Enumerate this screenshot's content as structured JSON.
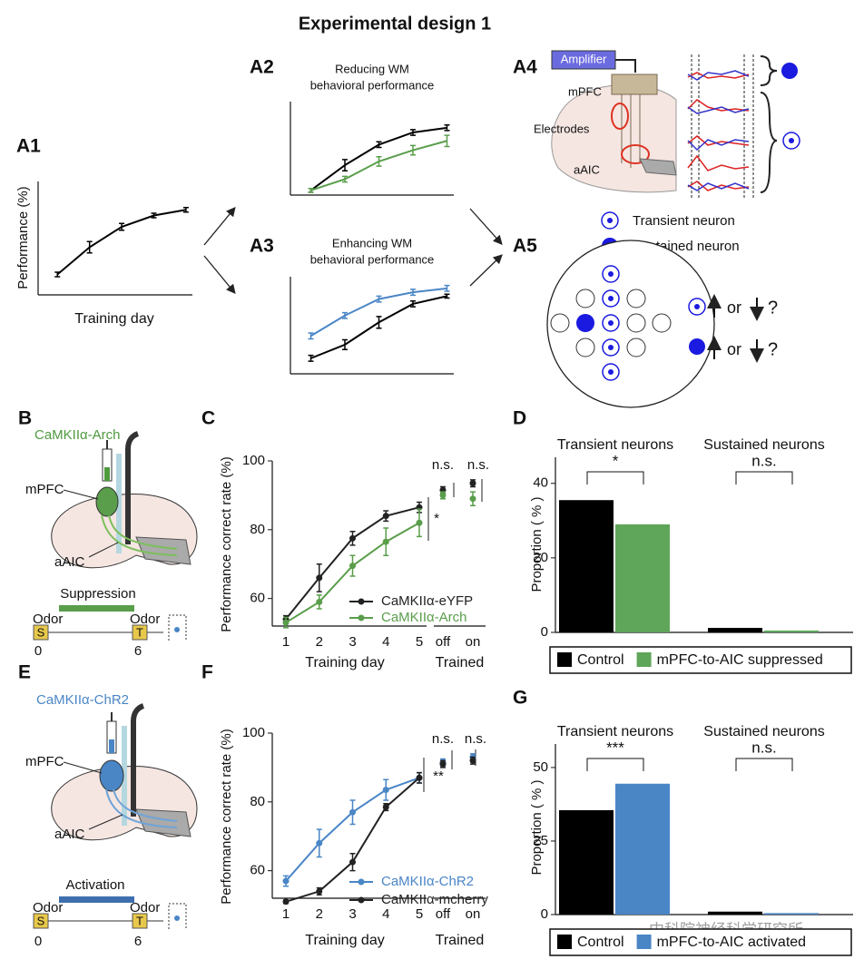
{
  "title": "Experimental design 1",
  "panel_labels": [
    "A1",
    "A2",
    "A3",
    "A4",
    "A5",
    "B",
    "C",
    "D",
    "E",
    "F",
    "G"
  ],
  "a4": {
    "amplifier": "Amplifier",
    "mpfc": "mPFC",
    "electrodes": "Electrodes",
    "aaic": "aAIC"
  },
  "a5": {
    "transient": "Transient neuron",
    "sustained": "Sustained neuron",
    "or": "or",
    "question": "?"
  },
  "b": {
    "construct": "CaMKIIα-Arch",
    "mpfc": "mPFC",
    "aaic": "aAIC",
    "manipulation": "Suppression",
    "odor": "Odor",
    "sample": "S",
    "test": "T",
    "t0": "0",
    "t1": "6"
  },
  "e": {
    "construct": "CaMKIIα-ChR2",
    "mpfc": "mPFC",
    "aaic": "aAIC",
    "manipulation": "Activation",
    "odor": "Odor",
    "sample": "S",
    "test": "T",
    "t0": "0",
    "t1": "6"
  },
  "watermark": "中科院神经科学研究所",
  "chart_data": [
    {
      "type": "line",
      "ylabel": "Performance (%)",
      "xlabel": "Training day",
      "x": [
        1,
        2,
        3,
        4,
        5
      ],
      "xlim": [
        0.4,
        5.2
      ],
      "ylim": [
        0,
        100
      ],
      "series": [
        {
          "color": "#000000",
          "values": [
            18,
            42,
            60,
            70,
            75
          ],
          "errors": [
            2,
            5,
            3,
            2,
            2
          ]
        }
      ]
    },
    {
      "type": "line",
      "title": [
        "Reducing WM",
        "behavioral performance"
      ],
      "x": [
        1,
        2,
        3,
        4,
        5
      ],
      "xlim": [
        0.4,
        5.2
      ],
      "ylim": [
        0,
        100
      ],
      "series": [
        {
          "color": "#000000",
          "values": [
            5,
            32,
            54,
            67,
            72
          ],
          "errors": [
            2,
            6,
            3,
            3,
            3
          ]
        },
        {
          "color": "#5a9e4b",
          "values": [
            5,
            17,
            36,
            48,
            58
          ],
          "errors": [
            2,
            3,
            5,
            5,
            6
          ]
        }
      ]
    },
    {
      "type": "line",
      "title": [
        "Enhancing WM",
        "behavioral performance"
      ],
      "x": [
        1,
        2,
        3,
        4,
        5
      ],
      "xlim": [
        0.4,
        5.2
      ],
      "ylim": [
        0,
        100
      ],
      "series": [
        {
          "color": "#4a86c6",
          "values": [
            39,
            60,
            77,
            84,
            88
          ],
          "errors": [
            3,
            3,
            3,
            3,
            3
          ]
        },
        {
          "color": "#000000",
          "values": [
            16,
            30,
            53,
            72,
            80
          ],
          "errors": [
            3,
            5,
            6,
            3,
            2
          ]
        }
      ]
    },
    {
      "type": "line",
      "ylabel": "Performance correct rate (%)",
      "xlabel": "Training day",
      "categories": [
        "1",
        "2",
        "3",
        "4",
        "5"
      ],
      "ylim": [
        52,
        100
      ],
      "yticks": [
        60,
        80,
        100
      ],
      "trained": {
        "label": "Trained",
        "categories": [
          "off",
          "on"
        ]
      },
      "series": [
        {
          "name": "CaMKIIα-eYFP",
          "color": "#222222",
          "values": [
            54,
            66,
            77.5,
            84,
            86.5
          ],
          "errors": [
            1,
            4,
            2,
            1.5,
            1.5
          ],
          "trained_values": [
            91.5,
            93.5
          ],
          "trained_errors": [
            1,
            1
          ]
        },
        {
          "name": "CaMKIIα-Arch",
          "color": "#5a9e4b",
          "values": [
            53,
            59,
            69.5,
            76.5,
            82
          ],
          "errors": [
            1.5,
            2,
            3,
            4,
            4
          ],
          "trained_values": [
            90,
            89
          ],
          "trained_errors": [
            1,
            2
          ]
        }
      ],
      "annotations": [
        "*",
        "n.s.",
        "n.s."
      ]
    },
    {
      "type": "bar",
      "ylabel": "Proportion ( % )",
      "categories": [
        "Transient neurons",
        "Sustained neurons"
      ],
      "ylim": [
        0,
        47
      ],
      "yticks": [
        0,
        20,
        40
      ],
      "series": [
        {
          "name": "Control",
          "color": "#000000",
          "values": [
            35.5,
            1.2
          ]
        },
        {
          "name": "mPFC-to-AIC suppressed",
          "color": "#5fa55a",
          "values": [
            29,
            0.5
          ]
        }
      ],
      "annotations": [
        "*",
        "n.s."
      ]
    },
    {
      "type": "line",
      "ylabel": "Performance correct rate (%)",
      "xlabel": "Training day",
      "categories": [
        "1",
        "2",
        "3",
        "4",
        "5"
      ],
      "ylim": [
        52,
        100
      ],
      "yticks": [
        60,
        80,
        100
      ],
      "trained": {
        "label": "Trained",
        "categories": [
          "off",
          "on"
        ]
      },
      "series": [
        {
          "name": "CaMKIIα-ChR2",
          "color": "#4a86c6",
          "values": [
            57,
            68,
            77,
            83.5,
            87
          ],
          "errors": [
            1.5,
            4,
            3.5,
            3,
            1.5
          ],
          "trained_values": [
            91.5,
            93
          ],
          "trained_errors": [
            1,
            1
          ]
        },
        {
          "name": "CaMKIIα-mcherry",
          "color": "#222222",
          "values": [
            51,
            54,
            62.5,
            78.5,
            87
          ],
          "errors": [
            0.5,
            1,
            2.5,
            1,
            1.5
          ],
          "trained_values": [
            91,
            92
          ],
          "trained_errors": [
            1,
            1
          ]
        }
      ],
      "annotations": [
        "**",
        "n.s.",
        "n.s."
      ]
    },
    {
      "type": "bar",
      "ylabel": "Proportion ( % )",
      "categories": [
        "Transient neurons",
        "Sustained neurons"
      ],
      "ylim": [
        0,
        58
      ],
      "yticks": [
        0,
        25,
        50
      ],
      "series": [
        {
          "name": "Control",
          "color": "#000000",
          "values": [
            35.5,
            1
          ]
        },
        {
          "name": "mPFC-to-AIC activated",
          "color": "#4a86c6",
          "values": [
            44.5,
            0.5
          ]
        }
      ],
      "annotations": [
        "***",
        "n.s."
      ]
    }
  ]
}
